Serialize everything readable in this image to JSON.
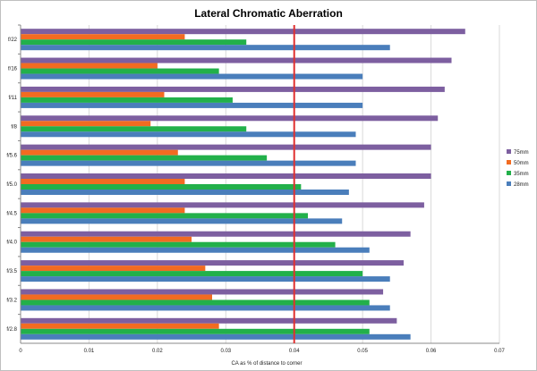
{
  "chart_data": {
    "type": "bar",
    "orientation": "horizontal",
    "title": "Lateral Chromatic Aberration",
    "xlabel": "CA as % of distance  to corner",
    "ylabel": "",
    "xlim": [
      0,
      0.07
    ],
    "xticks": [
      0,
      0.01,
      0.02,
      0.03,
      0.04,
      0.05,
      0.06,
      0.07
    ],
    "xtick_labels": [
      "0",
      "0.01",
      "0.02",
      "0.03",
      "0.04",
      "0.05",
      "0.06",
      "0.07"
    ],
    "grid": "vertical",
    "legend_position": "right",
    "reference_line": {
      "x": 0.04,
      "color": "#e03030"
    },
    "categories": [
      "f/22",
      "f/16",
      "f/11",
      "f/8",
      "f/5.6",
      "f/5.0",
      "f/4.5",
      "f/4.0",
      "f/3.5",
      "f/3.2",
      "f/2.8"
    ],
    "series": [
      {
        "name": "75mm",
        "color": "#7d5fa0",
        "values": [
          0.065,
          0.063,
          0.062,
          0.061,
          0.06,
          0.06,
          0.059,
          0.057,
          0.056,
          0.053,
          0.055
        ]
      },
      {
        "name": "50mm",
        "color": "#f26b21",
        "values": [
          0.024,
          0.02,
          0.021,
          0.019,
          0.023,
          0.024,
          0.024,
          0.025,
          0.027,
          0.028,
          0.029
        ]
      },
      {
        "name": "35mm",
        "color": "#22b04a",
        "values": [
          0.033,
          0.029,
          0.031,
          0.033,
          0.036,
          0.041,
          0.042,
          0.046,
          0.05,
          0.051,
          0.051
        ]
      },
      {
        "name": "28mm",
        "color": "#4a7ebb",
        "values": [
          0.054,
          0.05,
          0.05,
          0.049,
          0.049,
          0.048,
          0.047,
          0.051,
          0.054,
          0.054,
          0.057
        ]
      }
    ]
  }
}
